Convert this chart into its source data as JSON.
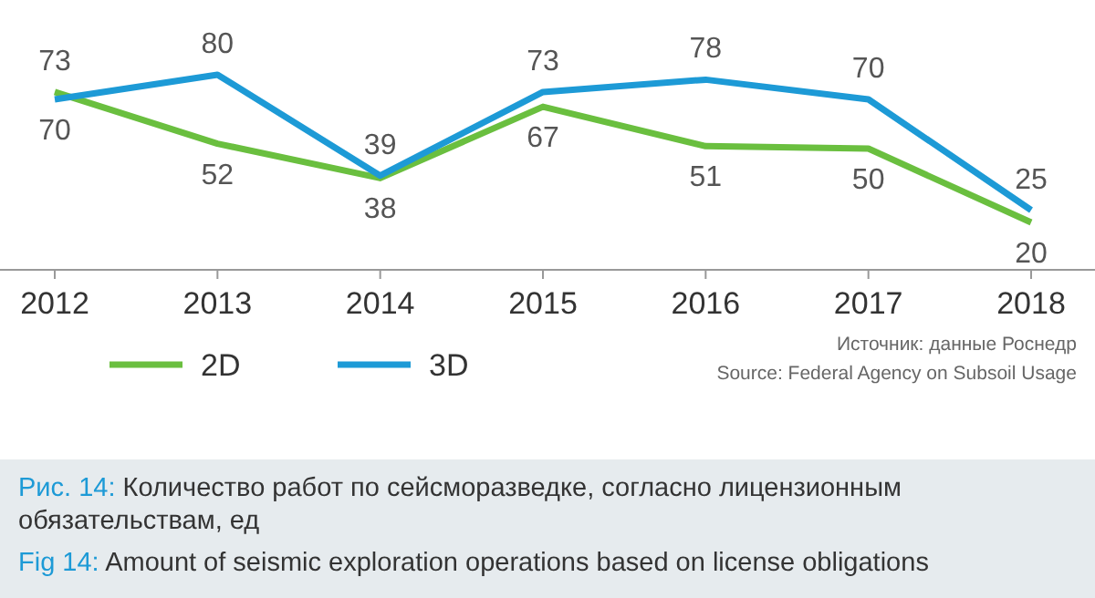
{
  "chart_data": {
    "type": "line",
    "categories": [
      "2012",
      "2013",
      "2014",
      "2015",
      "2016",
      "2017",
      "2018"
    ],
    "series": [
      {
        "name": "2D",
        "color": "#6abf3f",
        "values": [
          73,
          52,
          38,
          67,
          51,
          50,
          20
        ]
      },
      {
        "name": "3D",
        "color": "#1d9ad6",
        "values": [
          70,
          80,
          39,
          73,
          78,
          70,
          25
        ]
      }
    ],
    "data_labels": true,
    "legend": "bottom left",
    "marker": "none",
    "line_style": "solid",
    "grid": false,
    "annotations": [
      "Источник: данные Роснедр",
      "Source: Federal Agency on Subsoil Usage",
      "Рис. 14: Количество работ по сейсморазведке, согласно лицензионным обязательствам, ед",
      "Fig 14: Amount of seismic exploration operations based on license obligations"
    ]
  }
}
